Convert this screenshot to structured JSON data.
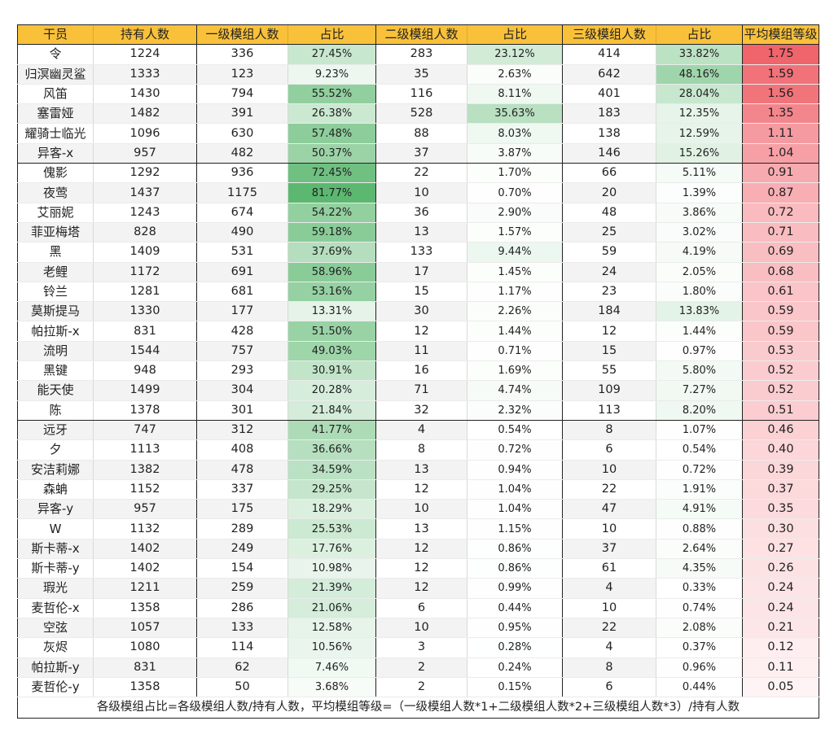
{
  "headers": [
    "干员",
    "持有人数",
    "一级模组人数",
    "占比",
    "二级模组人数",
    "占比",
    "三级模组人数",
    "占比",
    "平均模组等级"
  ],
  "rows": [
    [
      "令",
      "1224",
      "336",
      "27.45%",
      "283",
      "23.12%",
      "414",
      "33.82%",
      "1.75"
    ],
    [
      "归溟幽灵鲨",
      "1333",
      "123",
      "9.23%",
      "35",
      "2.63%",
      "642",
      "48.16%",
      "1.59"
    ],
    [
      "风笛",
      "1430",
      "794",
      "55.52%",
      "116",
      "8.11%",
      "401",
      "28.04%",
      "1.56"
    ],
    [
      "塞雷娅",
      "1482",
      "391",
      "26.38%",
      "528",
      "35.63%",
      "183",
      "12.35%",
      "1.35"
    ],
    [
      "耀骑士临光",
      "1096",
      "630",
      "57.48%",
      "88",
      "8.03%",
      "138",
      "12.59%",
      "1.11"
    ],
    [
      "异客-x",
      "957",
      "482",
      "50.37%",
      "37",
      "3.87%",
      "146",
      "15.26%",
      "1.04"
    ],
    [
      "傀影",
      "1292",
      "936",
      "72.45%",
      "22",
      "1.70%",
      "66",
      "5.11%",
      "0.91"
    ],
    [
      "夜莺",
      "1437",
      "1175",
      "81.77%",
      "10",
      "0.70%",
      "20",
      "1.39%",
      "0.87"
    ],
    [
      "艾丽妮",
      "1243",
      "674",
      "54.22%",
      "36",
      "2.90%",
      "48",
      "3.86%",
      "0.72"
    ],
    [
      "菲亚梅塔",
      "828",
      "490",
      "59.18%",
      "13",
      "1.57%",
      "25",
      "3.02%",
      "0.71"
    ],
    [
      "黑",
      "1409",
      "531",
      "37.69%",
      "133",
      "9.44%",
      "59",
      "4.19%",
      "0.69"
    ],
    [
      "老鲤",
      "1172",
      "691",
      "58.96%",
      "17",
      "1.45%",
      "24",
      "2.05%",
      "0.68"
    ],
    [
      "铃兰",
      "1281",
      "681",
      "53.16%",
      "15",
      "1.17%",
      "23",
      "1.80%",
      "0.61"
    ],
    [
      "莫斯提马",
      "1330",
      "177",
      "13.31%",
      "30",
      "2.26%",
      "184",
      "13.83%",
      "0.59"
    ],
    [
      "帕拉斯-x",
      "831",
      "428",
      "51.50%",
      "12",
      "1.44%",
      "12",
      "1.44%",
      "0.59"
    ],
    [
      "流明",
      "1544",
      "757",
      "49.03%",
      "11",
      "0.71%",
      "15",
      "0.97%",
      "0.53"
    ],
    [
      "黑键",
      "948",
      "293",
      "30.91%",
      "16",
      "1.69%",
      "55",
      "5.80%",
      "0.52"
    ],
    [
      "能天使",
      "1499",
      "304",
      "20.28%",
      "71",
      "4.74%",
      "109",
      "7.27%",
      "0.52"
    ],
    [
      "陈",
      "1378",
      "301",
      "21.84%",
      "32",
      "2.32%",
      "113",
      "8.20%",
      "0.51"
    ],
    [
      "远牙",
      "747",
      "312",
      "41.77%",
      "4",
      "0.54%",
      "8",
      "1.07%",
      "0.46"
    ],
    [
      "夕",
      "1113",
      "408",
      "36.66%",
      "8",
      "0.72%",
      "6",
      "0.54%",
      "0.40"
    ],
    [
      "安洁莉娜",
      "1382",
      "478",
      "34.59%",
      "13",
      "0.94%",
      "10",
      "0.72%",
      "0.39"
    ],
    [
      "森蚺",
      "1152",
      "337",
      "29.25%",
      "12",
      "1.04%",
      "22",
      "1.91%",
      "0.37"
    ],
    [
      "异客-y",
      "957",
      "175",
      "18.29%",
      "10",
      "1.04%",
      "47",
      "4.91%",
      "0.35"
    ],
    [
      "W",
      "1132",
      "289",
      "25.53%",
      "13",
      "1.15%",
      "10",
      "0.88%",
      "0.30"
    ],
    [
      "斯卡蒂-x",
      "1402",
      "249",
      "17.76%",
      "12",
      "0.86%",
      "37",
      "2.64%",
      "0.27"
    ],
    [
      "斯卡蒂-y",
      "1402",
      "154",
      "10.98%",
      "12",
      "0.86%",
      "61",
      "4.35%",
      "0.26"
    ],
    [
      "瑕光",
      "1211",
      "259",
      "21.39%",
      "12",
      "0.99%",
      "4",
      "0.33%",
      "0.24"
    ],
    [
      "麦哲伦-x",
      "1358",
      "286",
      "21.06%",
      "6",
      "0.44%",
      "10",
      "0.74%",
      "0.24"
    ],
    [
      "空弦",
      "1057",
      "133",
      "12.58%",
      "10",
      "0.95%",
      "22",
      "2.08%",
      "0.21"
    ],
    [
      "灰烬",
      "1080",
      "114",
      "10.56%",
      "3",
      "0.28%",
      "4",
      "0.37%",
      "0.12"
    ],
    [
      "帕拉斯-y",
      "831",
      "62",
      "7.46%",
      "2",
      "0.24%",
      "8",
      "0.96%",
      "0.11"
    ],
    [
      "麦哲伦-y",
      "1358",
      "50",
      "3.68%",
      "2",
      "0.15%",
      "6",
      "0.44%",
      "0.05"
    ]
  ],
  "footnote": "各级模组占比=各级模组人数/持有人数，平均模组等级=（一级模组人数*1+二级模组人数*2+三级模组人数*3）/持有人数",
  "colors": {
    "header_bg": "#f9c13a",
    "green_scale": "#5cb870",
    "red_scale": "#f0646c"
  }
}
